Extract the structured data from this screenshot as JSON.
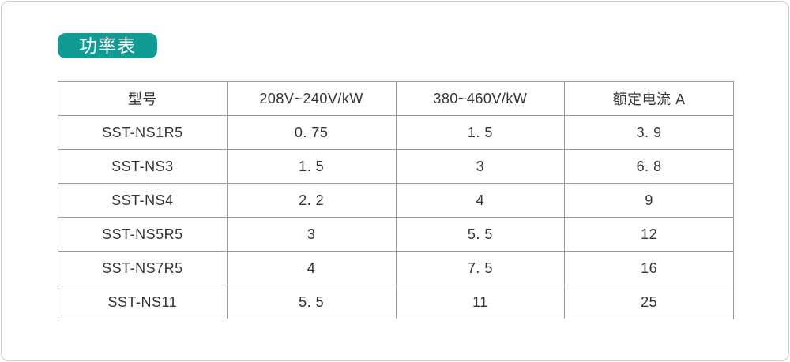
{
  "page": {
    "badge_label": "功率表"
  },
  "table": {
    "headers": [
      "型号",
      "208V~240V/kW",
      "380~460V/kW",
      "额定电流 A"
    ],
    "rows": [
      [
        "SST-NS1R5",
        "0. 75",
        "1. 5",
        "3. 9"
      ],
      [
        "SST-NS3",
        "1. 5",
        "3",
        "6. 8"
      ],
      [
        "SST-NS4",
        "2. 2",
        "4",
        "9"
      ],
      [
        "SST-NS5R5",
        "3",
        "5. 5",
        "12"
      ],
      [
        "SST-NS7R5",
        "4",
        "7. 5",
        "16"
      ],
      [
        "SST-NS11",
        "5. 5",
        "11",
        "25"
      ]
    ]
  },
  "colors": {
    "badge_background": "#109b95",
    "badge_text": "#ffffff",
    "table_grid": "#9a9a9a",
    "body_text": "#333333",
    "page_border": "#c7d0d6"
  }
}
